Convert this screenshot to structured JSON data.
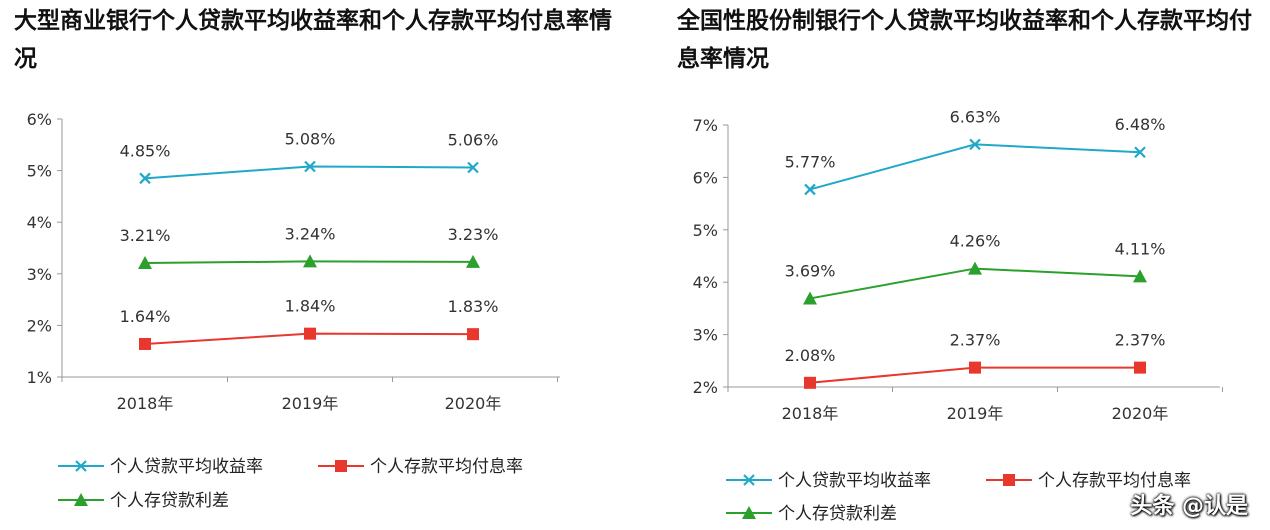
{
  "colors": {
    "loan": "#1fa8c9",
    "deposit": "#e8372d",
    "spread": "#2ca02c",
    "axis": "#999999"
  },
  "legend": {
    "loan_rate": "个人贷款平均收益率",
    "deposit_rate": "个人存款平均付息率",
    "spread": "个人存贷款利差"
  },
  "watermark": "头条 @认是",
  "chart_data": [
    {
      "type": "line",
      "title": "大型商业银行个人贷款平均收益率和个人存款平均付息率情况",
      "categories": [
        "2018年",
        "2019年",
        "2020年"
      ],
      "ylim": [
        1,
        6
      ],
      "yticks": [
        "1%",
        "2%",
        "3%",
        "4%",
        "5%",
        "6%"
      ],
      "legend_position": "bottom",
      "series": [
        {
          "name": "个人贷款平均收益率",
          "marker": "x",
          "values": [
            4.85,
            5.08,
            5.06
          ],
          "labels": [
            "4.85%",
            "5.08%",
            "5.06%"
          ]
        },
        {
          "name": "个人存款平均付息率",
          "marker": "square",
          "values": [
            1.64,
            1.84,
            1.83
          ],
          "labels": [
            "1.64%",
            "1.84%",
            "1.83%"
          ]
        },
        {
          "name": "个人存贷款利差",
          "marker": "triangle",
          "values": [
            3.21,
            3.24,
            3.23
          ],
          "labels": [
            "3.21%",
            "3.24%",
            "3.23%"
          ]
        }
      ]
    },
    {
      "type": "line",
      "title": "全国性股份制银行个人贷款平均收益率和个人存款平均付息率情况",
      "categories": [
        "2018年",
        "2019年",
        "2020年"
      ],
      "ylim": [
        2,
        7
      ],
      "yticks": [
        "2%",
        "3%",
        "4%",
        "5%",
        "6%",
        "7%"
      ],
      "legend_position": "bottom",
      "series": [
        {
          "name": "个人贷款平均收益率",
          "marker": "x",
          "values": [
            5.77,
            6.63,
            6.48
          ],
          "labels": [
            "5.77%",
            "6.63%",
            "6.48%"
          ]
        },
        {
          "name": "个人存款平均付息率",
          "marker": "square",
          "values": [
            2.08,
            2.37,
            2.37
          ],
          "labels": [
            "2.08%",
            "2.37%",
            "2.37%"
          ]
        },
        {
          "name": "个人存贷款利差",
          "marker": "triangle",
          "values": [
            3.69,
            4.26,
            4.11
          ],
          "labels": [
            "3.69%",
            "4.26%",
            "4.11%"
          ]
        }
      ]
    }
  ]
}
